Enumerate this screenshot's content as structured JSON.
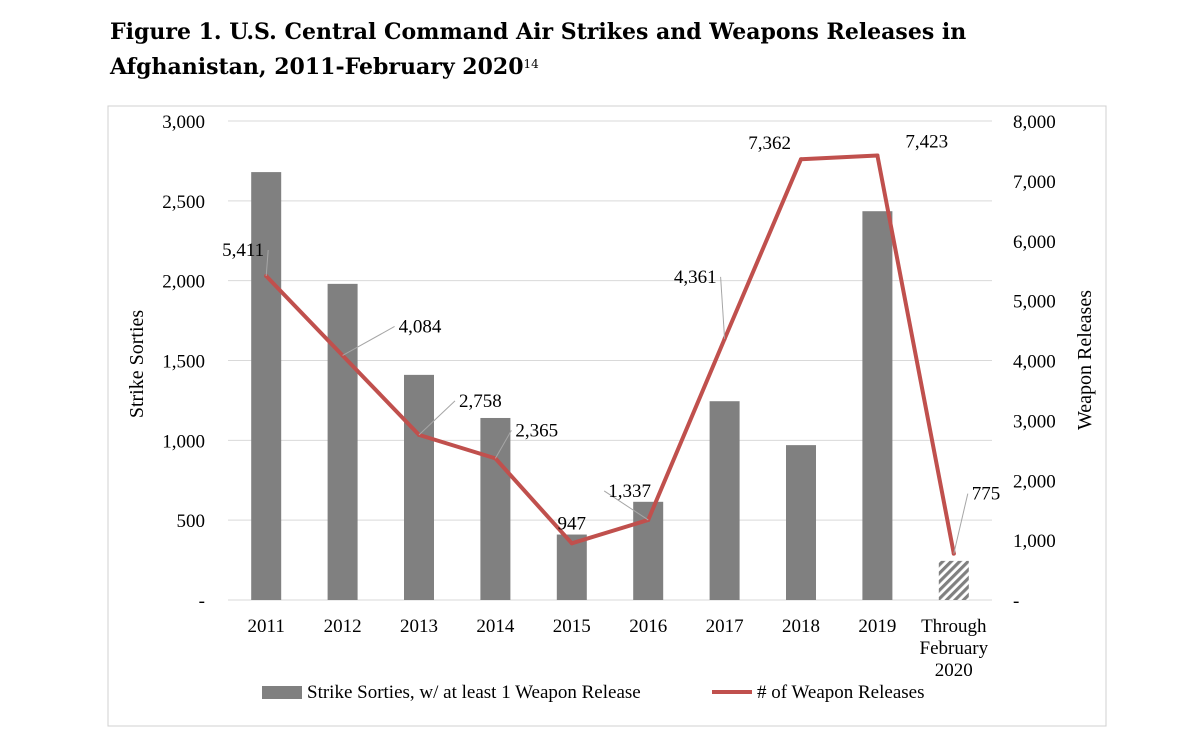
{
  "figure": {
    "title_main": "Figure 1. U.S. Central Command Air Strikes and Weapons Releases in Afghanistan, 2011-February 2020",
    "title_ref": "14"
  },
  "chart_data": {
    "type": "bar",
    "title": "Figure 1. U.S. Central Command Air Strikes and Weapons Releases in Afghanistan, 2011-February 2020",
    "categories": [
      "2011",
      "2012",
      "2013",
      "2014",
      "2015",
      "2016",
      "2017",
      "2018",
      "2019",
      "Through February 2020"
    ],
    "category_lines": [
      [
        "2011"
      ],
      [
        "2012"
      ],
      [
        "2013"
      ],
      [
        "2014"
      ],
      [
        "2015"
      ],
      [
        "2016"
      ],
      [
        "2017"
      ],
      [
        "2018"
      ],
      [
        "2019"
      ],
      [
        "Through",
        "February",
        "2020"
      ]
    ],
    "ylabel": "Strike Sorties",
    "y2label": "Weapon Releases",
    "ylim": [
      0,
      3000
    ],
    "y2lim": [
      0,
      8000
    ],
    "yticks": [
      "-",
      "500",
      "1,000",
      "1,500",
      "2,000",
      "2,500",
      "3,000"
    ],
    "y2ticks": [
      "-",
      "1,000",
      "2,000",
      "3,000",
      "4,000",
      "5,000",
      "6,000",
      "7,000",
      "8,000"
    ],
    "grid": true,
    "legend_position": "bottom",
    "series": [
      {
        "name": "Strike Sorties, w/ at least 1 Weapon Release",
        "type": "bar",
        "axis": "left",
        "color": "#808080",
        "values": [
          2680,
          1980,
          1410,
          1140,
          410,
          615,
          1245,
          970,
          2435,
          245
        ],
        "hatched_last": true
      },
      {
        "name": "# of Weapon Releases",
        "type": "line",
        "axis": "right",
        "color": "#c0504d",
        "values": [
          5411,
          4084,
          2758,
          2365,
          947,
          1337,
          4361,
          7362,
          7423,
          775
        ],
        "labels": [
          "5,411",
          "4,084",
          "2,758",
          "2,365",
          "947",
          "1,337",
          "4,361",
          "7,362",
          "7,423",
          "775"
        ]
      }
    ]
  }
}
